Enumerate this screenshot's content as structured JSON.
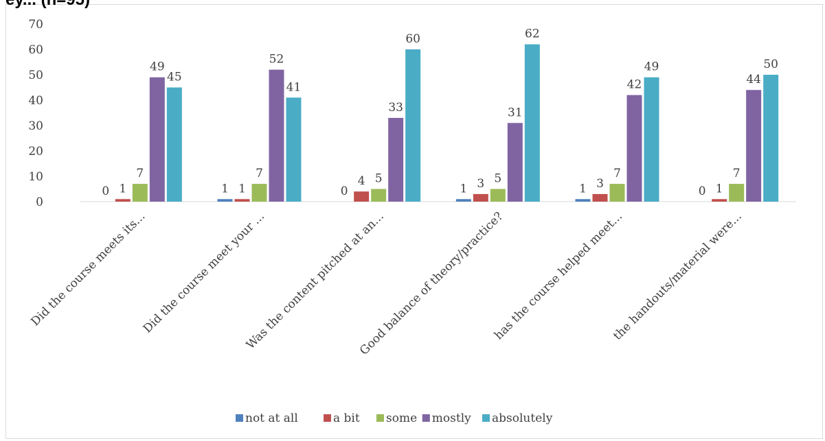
{
  "header": {
    "cut_title": "ey... (n=95)"
  },
  "chart_data": {
    "type": "bar",
    "title": "",
    "xlabel": "",
    "ylabel": "",
    "ylim": [
      0,
      70
    ],
    "yticks": [
      0,
      10,
      20,
      30,
      40,
      50,
      60,
      70
    ],
    "grid": false,
    "legend_position": "bottom",
    "categories": [
      "Did the course meets its...",
      "Did the course meet your ...",
      "Was the content pitched at an...",
      "Good balance of theory/practice?",
      "has the course helped meet...",
      "the handouts/material were..."
    ],
    "series": [
      {
        "name": "not at all",
        "color": "#4f81bd",
        "values": [
          0,
          1,
          0,
          1,
          1,
          0
        ]
      },
      {
        "name": "a bit",
        "color": "#c0504d",
        "values": [
          1,
          1,
          4,
          3,
          3,
          1
        ]
      },
      {
        "name": "some",
        "color": "#9bbb59",
        "values": [
          7,
          7,
          5,
          5,
          7,
          7
        ]
      },
      {
        "name": "mostly",
        "color": "#8064a2",
        "values": [
          49,
          52,
          33,
          31,
          42,
          44
        ]
      },
      {
        "name": "absolutely",
        "color": "#4bacc6",
        "values": [
          45,
          41,
          60,
          62,
          49,
          50
        ]
      }
    ]
  }
}
